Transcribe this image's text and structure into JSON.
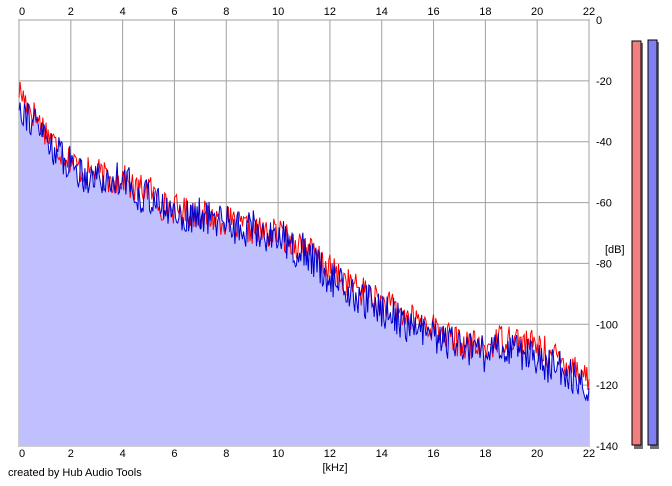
{
  "credit": "created by Hub Audio Tools",
  "chart_data": {
    "type": "line",
    "xlabel": "[kHz]",
    "ylabel": "[dB]",
    "xlim": [
      0,
      22
    ],
    "ylim": [
      -140,
      0
    ],
    "x_ticks": [
      "0",
      "2",
      "4",
      "6",
      "8",
      "10",
      "12",
      "14",
      "16",
      "18",
      "20",
      "22"
    ],
    "y_ticks": [
      "0",
      "-20",
      "-40",
      "-60",
      "-80",
      "-100",
      "-120",
      "-140"
    ],
    "grid": true,
    "fill_under": "blue",
    "x": [
      0,
      0.5,
      1,
      1.5,
      2,
      2.5,
      3,
      3.5,
      4,
      4.5,
      5,
      5.5,
      6,
      6.5,
      7,
      7.5,
      8,
      8.5,
      9,
      9.5,
      10,
      10.5,
      11,
      11.5,
      12,
      12.5,
      13,
      13.5,
      14,
      14.5,
      15,
      15.5,
      16,
      16.5,
      17,
      17.5,
      18,
      18.5,
      19,
      19.5,
      20,
      20.5,
      21,
      21.5,
      22
    ],
    "series": [
      {
        "color": "#ff0000",
        "values": [
          -23,
          -30,
          -36,
          -42,
          -46,
          -50,
          -50,
          -53,
          -52,
          -56,
          -55,
          -61,
          -62,
          -63,
          -64,
          -65,
          -66,
          -68,
          -69,
          -70,
          -70,
          -73,
          -74,
          -78,
          -82,
          -85,
          -88,
          -90,
          -93,
          -95,
          -98,
          -99,
          -101,
          -104,
          -106,
          -107,
          -108,
          -105,
          -104,
          -106,
          -107,
          -110,
          -112,
          -114,
          -118
        ]
      },
      {
        "color": "#0000cc",
        "values": [
          -27,
          -33,
          -38,
          -44,
          -47,
          -51,
          -51,
          -54,
          -50,
          -58,
          -57,
          -62,
          -63,
          -65,
          -64,
          -66,
          -65,
          -69,
          -68,
          -71,
          -70,
          -75,
          -76,
          -80,
          -85,
          -87,
          -92,
          -93,
          -95,
          -97,
          -101,
          -102,
          -104,
          -106,
          -107,
          -109,
          -110,
          -108,
          -107,
          -110,
          -111,
          -114,
          -115,
          -118,
          -121
        ]
      }
    ]
  },
  "levels": [
    {
      "color": "#f08080",
      "value_db": -3
    },
    {
      "color": "#8080f0",
      "value_db": -2
    }
  ]
}
